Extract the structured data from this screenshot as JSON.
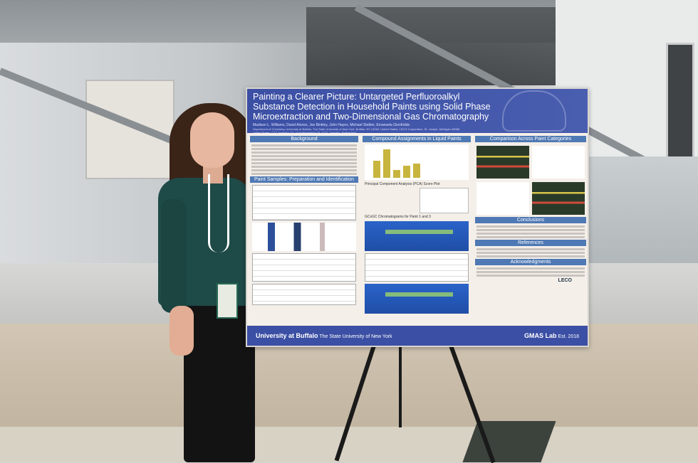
{
  "poster": {
    "title": "Painting a Clearer Picture: Untargeted Perfluoroalkyl Substance Detection in Household Paints using Solid Phase Microextraction and Two-Dimensional Gas Chromatography",
    "authors": "Madison L. Williams, David Alonso, Joe Binkley, John Hayes, Michael Stebler, Emanuela Gionfriddo",
    "affiliations": "Department of Chemistry, University at Buffalo, The State University of New York, Buffalo, NY 14260, United States; LECO Corporation, St. Joseph, Michigan 49085, United States; CTC Analytics AG, Industriestrasse 20, 4222, Zwingen, Switzerland",
    "sections": {
      "background": "Background",
      "paint_samples": "Paint Samples: Preparation and Identification",
      "compound_assignments": "Compound Assignments in Liquid Paints",
      "comparison": "Comparison Across Paint Categories",
      "conclusions": "Conclusions",
      "references": "References",
      "acknowledgments": "Acknowledgments"
    },
    "subheadings": {
      "pca": "Principal Component Analysis (PCA) Score Plot",
      "chromatograms": "GCxGC Chromatograms for Paint 1 and 3"
    },
    "footer": {
      "university": "University at Buffalo",
      "university_sub": "The State University of New York",
      "lab": "GMAS Lab",
      "lab_est": "Est. 2018",
      "sponsor": "LECO"
    }
  }
}
